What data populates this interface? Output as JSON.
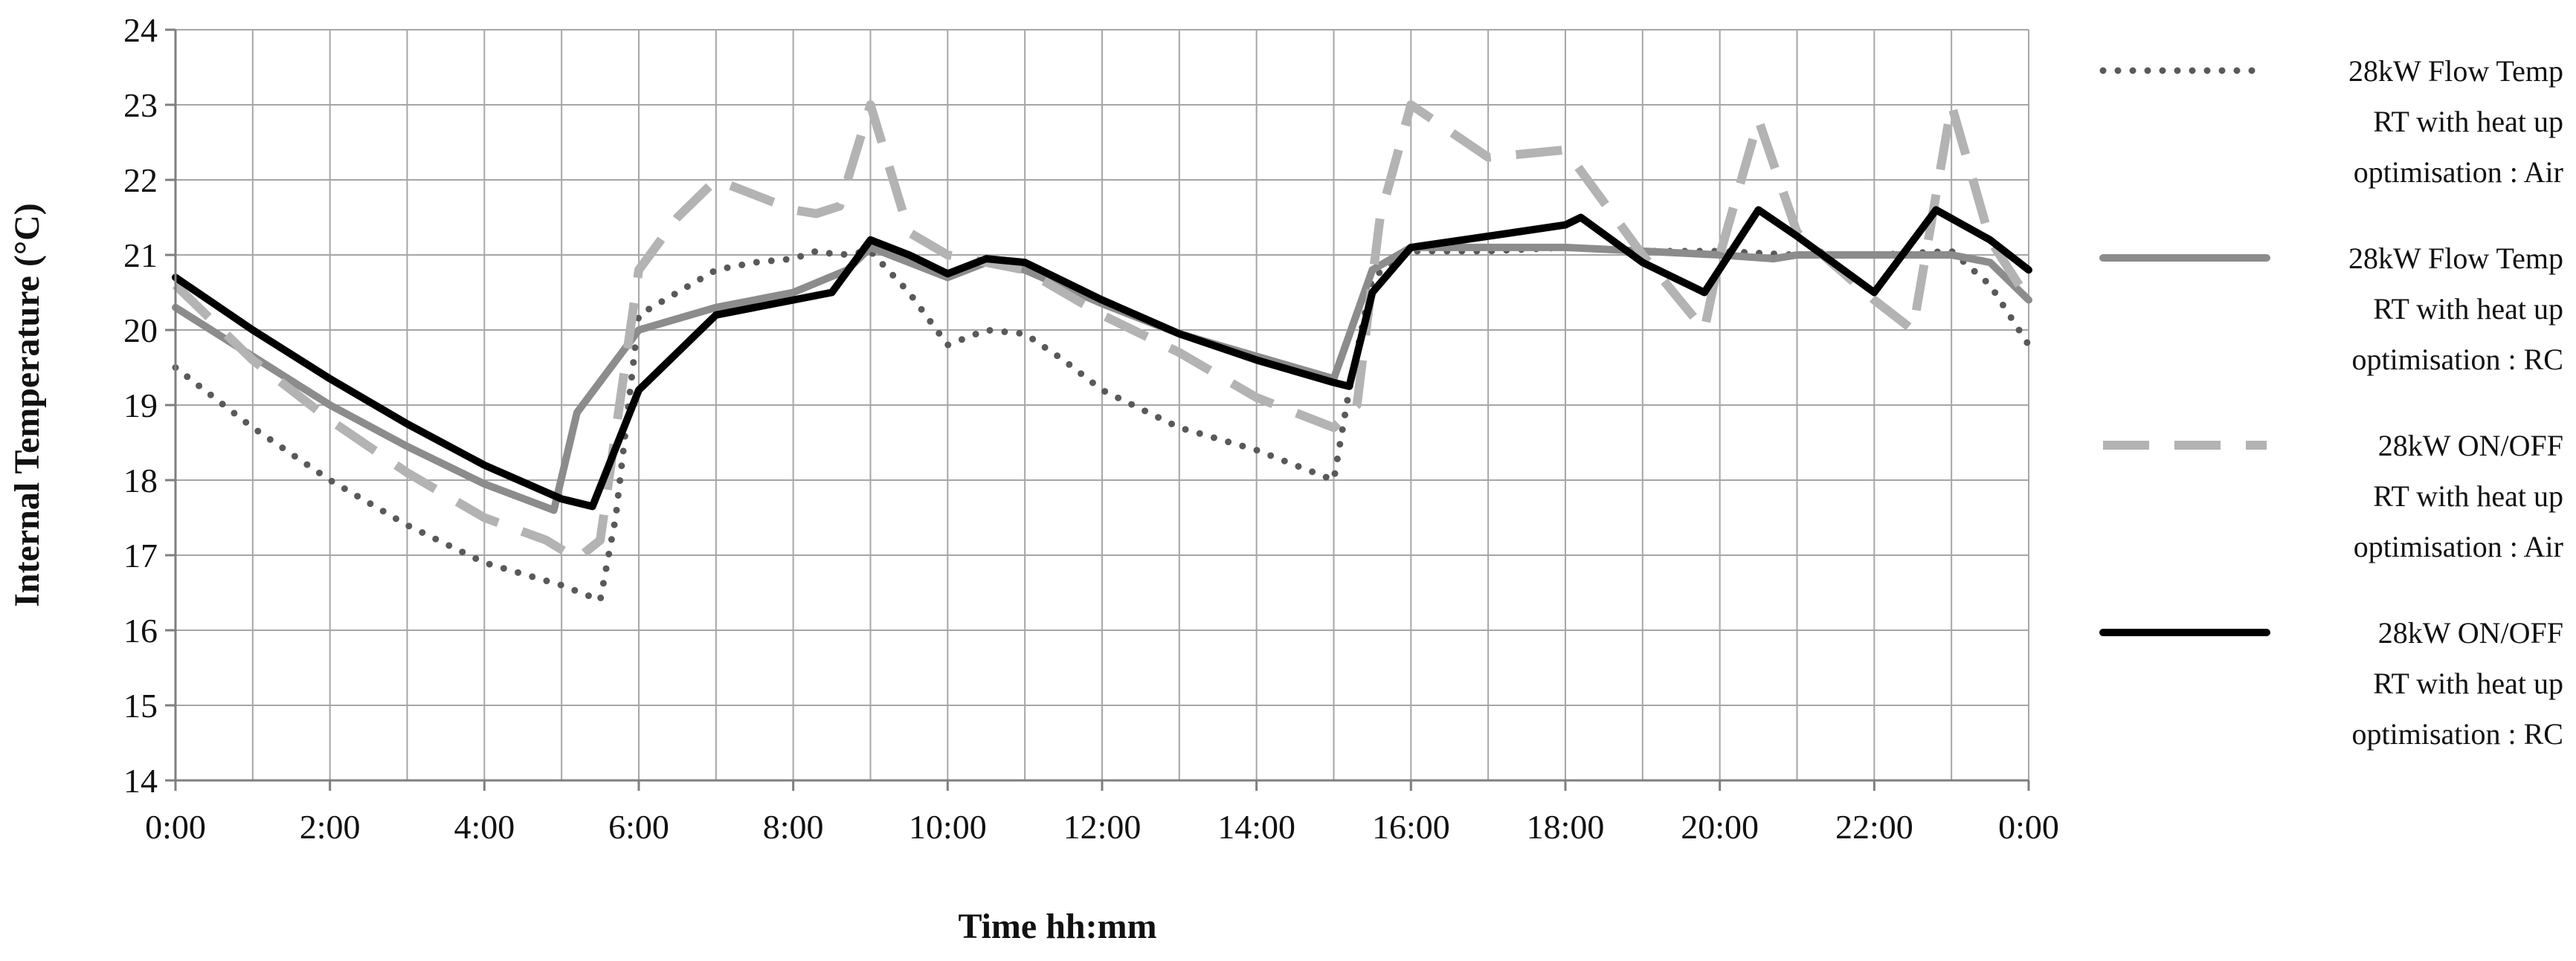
{
  "chart_data": {
    "type": "line",
    "title": "",
    "xlabel": "Time hh:mm",
    "ylabel": "Internal Temperature (°C)",
    "ylim": [
      14,
      24
    ],
    "yticks": [
      "14",
      "15",
      "16",
      "17",
      "18",
      "19",
      "20",
      "21",
      "22",
      "23",
      "24"
    ],
    "xlim": [
      0,
      24
    ],
    "xticks": [
      "0:00",
      "2:00",
      "4:00",
      "6:00",
      "8:00",
      "10:00",
      "12:00",
      "14:00",
      "16:00",
      "18:00",
      "20:00",
      "22:00",
      "0:00"
    ],
    "grid": true,
    "legend_position": "right",
    "series": [
      {
        "name": "28kW Flow Temp RT with heat up optimisation : Air",
        "legend_lines": [
          "28kW Flow Temp",
          "RT with heat up",
          "optimisation : Air"
        ],
        "color": "#595959",
        "style": "dotted",
        "x": [
          0,
          1,
          2,
          3,
          4,
          4.5,
          5,
          5.5,
          5.7,
          6,
          6.5,
          7,
          7.5,
          8,
          8.3,
          8.6,
          9,
          9.5,
          10,
          10.5,
          11,
          11.5,
          12,
          13,
          14,
          15,
          15.2,
          15.5,
          16,
          17,
          18,
          19,
          20,
          21,
          22,
          23,
          23.5,
          24
        ],
        "y": [
          19.5,
          18.7,
          18.0,
          17.4,
          16.9,
          16.75,
          16.6,
          16.4,
          17.5,
          20.2,
          20.5,
          20.8,
          20.9,
          20.95,
          21.05,
          21.0,
          21.05,
          20.5,
          19.8,
          20.0,
          19.95,
          19.6,
          19.2,
          18.7,
          18.4,
          18.0,
          19.2,
          20.7,
          21.05,
          21.05,
          21.1,
          21.05,
          21.05,
          21.0,
          21.0,
          21.05,
          20.6,
          19.8
        ]
      },
      {
        "name": "28kW Flow Temp RT with heat up optimisation : RC",
        "legend_lines": [
          "28kW Flow Temp",
          "RT with heat up",
          "optimisation : RC"
        ],
        "color": "#8c8c8c",
        "style": "solid",
        "x": [
          0,
          1,
          2,
          3,
          4,
          4.9,
          5.2,
          6,
          7,
          8,
          8.7,
          9,
          10,
          10.5,
          11,
          12,
          13,
          14,
          15,
          15.5,
          16,
          17,
          18,
          19,
          20,
          20.7,
          21,
          22,
          23,
          23.5,
          24
        ],
        "y": [
          20.3,
          19.65,
          19.0,
          18.45,
          17.95,
          17.6,
          18.9,
          20.0,
          20.3,
          20.5,
          20.8,
          21.1,
          20.7,
          20.9,
          20.8,
          20.35,
          19.95,
          19.65,
          19.35,
          20.8,
          21.1,
          21.1,
          21.1,
          21.05,
          21.0,
          20.95,
          21.0,
          21.0,
          21.0,
          20.9,
          20.4
        ]
      },
      {
        "name": "28kW ON/OFF RT with heat up optimisation : Air",
        "legend_lines": [
          "28kW ON/OFF",
          "RT  with heat up",
          "optimisation : Air"
        ],
        "color": "#b3b3b3",
        "style": "dashed",
        "x": [
          0,
          1,
          2,
          3,
          4,
          4.8,
          5.2,
          5.5,
          6,
          6.5,
          7,
          7.5,
          8,
          8.3,
          8.6,
          9,
          9.5,
          10,
          11,
          12,
          13,
          14,
          15,
          15.3,
          15.6,
          16,
          17,
          18,
          19,
          19.8,
          20,
          20.5,
          21,
          22,
          22.5,
          23,
          23.5,
          24
        ],
        "y": [
          20.6,
          19.6,
          18.8,
          18.1,
          17.5,
          17.2,
          16.95,
          17.2,
          20.8,
          21.5,
          22.0,
          21.8,
          21.6,
          21.55,
          21.65,
          23.0,
          21.3,
          21.0,
          20.8,
          20.2,
          19.7,
          19.1,
          18.7,
          19.0,
          21.5,
          23.0,
          22.3,
          22.4,
          21.0,
          20.0,
          21.0,
          22.8,
          21.3,
          20.4,
          20.0,
          23.0,
          21.2,
          20.4
        ]
      },
      {
        "name": "28kW ON/OFF RT with heat up optimisation : RC",
        "legend_lines": [
          "28kW ON/OFF",
          "RT  with heat up",
          "optimisation : RC"
        ],
        "color": "#000000",
        "style": "solid",
        "x": [
          0,
          1,
          2,
          3,
          4,
          5,
          5.4,
          6,
          7,
          8,
          8.5,
          9,
          9.5,
          10,
          10.5,
          11,
          12,
          13,
          14,
          15,
          15.2,
          15.5,
          16,
          17,
          18,
          18.2,
          19,
          19.8,
          20.5,
          21,
          22,
          22.8,
          23.5,
          24
        ],
        "y": [
          20.7,
          20.0,
          19.35,
          18.75,
          18.2,
          17.75,
          17.65,
          19.2,
          20.2,
          20.4,
          20.5,
          21.2,
          21.0,
          20.75,
          20.95,
          20.9,
          20.4,
          19.95,
          19.6,
          19.3,
          19.25,
          20.5,
          21.1,
          21.25,
          21.4,
          21.5,
          20.9,
          20.5,
          21.6,
          21.25,
          20.5,
          21.6,
          21.2,
          20.8
        ]
      }
    ]
  }
}
